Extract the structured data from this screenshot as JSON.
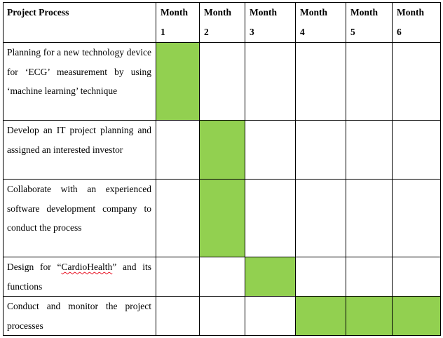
{
  "table": {
    "headers": {
      "process": "Project Process",
      "months": [
        {
          "word": "Month",
          "num": "1"
        },
        {
          "word": "Month",
          "num": "2"
        },
        {
          "word": "Month",
          "num": "3"
        },
        {
          "word": "Month",
          "num": "4"
        },
        {
          "word": "Month",
          "num": "5"
        },
        {
          "word": "Month",
          "num": "6"
        }
      ]
    },
    "rows": [
      {
        "text": [
          "Planning for a new technology device for ‘ECG’ measurement by using ‘machine learning’ technique"
        ],
        "active_months": [
          1
        ]
      },
      {
        "text": [
          "Develop an IT project planning and assigned an interested investor"
        ],
        "active_months": [
          2
        ]
      },
      {
        "text": [
          "Collaborate with an experienced software development company to conduct the process"
        ],
        "active_months": [
          2
        ]
      },
      {
        "text": [
          "Design for “",
          "CardioHealth",
          "” and its functions"
        ],
        "active_months": [
          3
        ]
      },
      {
        "text": [
          "Conduct and monitor the project processes"
        ],
        "active_months": [
          4,
          5,
          6
        ]
      }
    ],
    "highlight_color": "#92d050"
  }
}
